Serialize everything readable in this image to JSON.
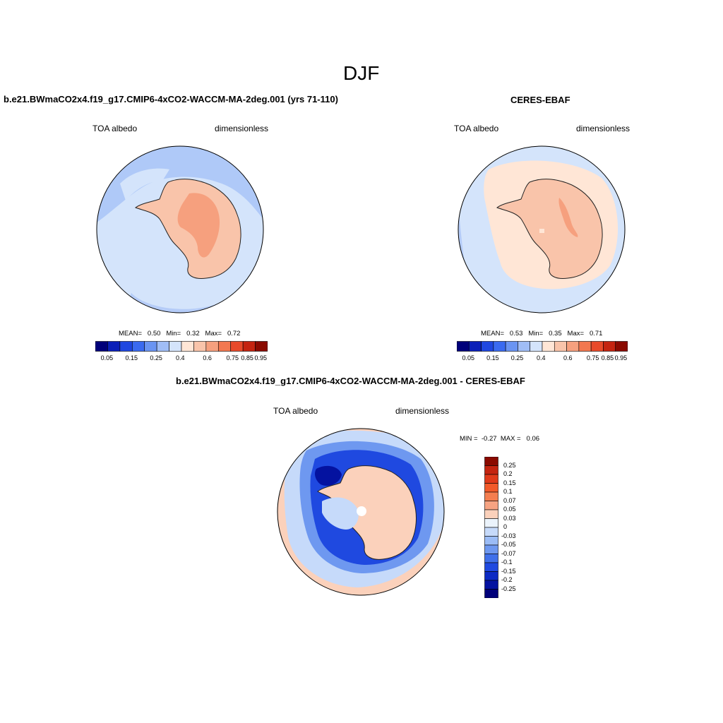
{
  "figure": {
    "title": "DJF"
  },
  "panels": [
    {
      "title": "b.e21.BWmaCO2x4.f19_g17.CMIP6-4xCO2-WACCM-MA-2deg.001 (yrs 71-110)",
      "left_label": "TOA albedo",
      "right_label": "dimensionless",
      "stats": {
        "mean_label": "MEAN=",
        "mean": "0.50",
        "min_label": "Min=",
        "min": "0.32",
        "max_label": "Max=",
        "max": "0.72"
      }
    },
    {
      "title": "CERES-EBAF",
      "left_label": "TOA albedo",
      "right_label": "dimensionless",
      "stats": {
        "mean_label": "MEAN=",
        "mean": "0.53",
        "min_label": "Min=",
        "min": "0.35",
        "max_label": "Max=",
        "max": "0.71"
      }
    },
    {
      "title": "b.e21.BWmaCO2x4.f19_g17.CMIP6-4xCO2-WACCM-MA-2deg.001 - CERES-EBAF",
      "left_label": "TOA albedo",
      "right_label": "dimensionless",
      "stats": {
        "min_label": "MIN =",
        "min": "-0.27",
        "max_label": "MAX =",
        "max": "0.06"
      }
    }
  ],
  "colorbars": {
    "abs": {
      "colors": [
        "#00007a",
        "#0a1fb8",
        "#1f47e0",
        "#3a6af0",
        "#6a94f2",
        "#a0bdf6",
        "#d4e4fb",
        "#ffe6d6",
        "#f9c4aa",
        "#f6a07e",
        "#f27850",
        "#e84a2a",
        "#c42410",
        "#8a0a00"
      ],
      "tick_labels": [
        "0.05",
        "0.15",
        "0.25",
        "0.4",
        "0.6",
        "0.75",
        "0.85",
        "0.95"
      ]
    },
    "diff": {
      "colors": [
        "#8a0a00",
        "#c42410",
        "#e03a1a",
        "#f25a2a",
        "#f47e50",
        "#f6a382",
        "#fbd1bb",
        "#ebf3fb",
        "#c6dafa",
        "#9bbcf6",
        "#6e98f0",
        "#4070ea",
        "#1f49e0",
        "#0c2ac4",
        "#0412a0",
        "#00007a"
      ],
      "tick_labels": [
        "0.25",
        "0.2",
        "0.15",
        "0.1",
        "0.07",
        "0.05",
        "0.03",
        "0",
        "-0.03",
        "-0.05",
        "-0.07",
        "-0.1",
        "-0.15",
        "-0.2",
        "-0.25"
      ]
    }
  },
  "map_colors": {
    "ocean": "#d4e4fb",
    "ocean_dark": "#a0bdf6",
    "land_light": "#f9c4aa",
    "land_mid": "#f6a07e",
    "land_pale": "#ffe6d6",
    "diff_pos": "#fbd1bb",
    "diff_neg1": "#c6dafa",
    "diff_neg2": "#6e98f0",
    "diff_neg3": "#1f49e0",
    "diff_neg4": "#0412a0"
  }
}
